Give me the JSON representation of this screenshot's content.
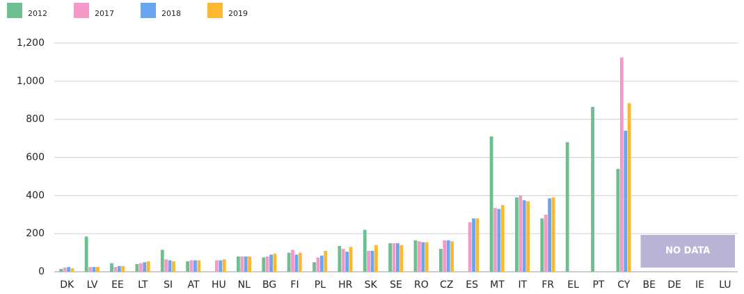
{
  "chart_data": {
    "type": "bar",
    "categories": [
      "DK",
      "LV",
      "EE",
      "LT",
      "SI",
      "AT",
      "HU",
      "NL",
      "BG",
      "FI",
      "PL",
      "HR",
      "SK",
      "SE",
      "RO",
      "CZ",
      "ES",
      "MT",
      "IT",
      "FR",
      "EL",
      "PT",
      "CY",
      "BE",
      "DE",
      "IE",
      "LU"
    ],
    "series": [
      {
        "name": "2012",
        "color": "#6dbf8f",
        "values": [
          15,
          185,
          45,
          40,
          115,
          55,
          null,
          80,
          75,
          100,
          50,
          135,
          220,
          150,
          165,
          120,
          null,
          710,
          390,
          280,
          680,
          865,
          540,
          null,
          null,
          null,
          null
        ]
      },
      {
        "name": "2017",
        "color": "#f59ac8",
        "values": [
          22,
          25,
          25,
          45,
          65,
          60,
          60,
          80,
          80,
          115,
          75,
          120,
          110,
          150,
          160,
          165,
          260,
          335,
          400,
          300,
          null,
          null,
          1125,
          null,
          null,
          null,
          null
        ]
      },
      {
        "name": "2018",
        "color": "#6aa6ef",
        "values": [
          25,
          25,
          30,
          50,
          60,
          60,
          60,
          80,
          90,
          90,
          85,
          105,
          110,
          150,
          155,
          165,
          280,
          330,
          375,
          385,
          null,
          null,
          740,
          null,
          null,
          null,
          null
        ]
      },
      {
        "name": "2019",
        "color": "#fbb830",
        "values": [
          18,
          25,
          30,
          55,
          55,
          60,
          65,
          80,
          95,
          100,
          110,
          130,
          140,
          140,
          155,
          160,
          280,
          350,
          370,
          390,
          null,
          null,
          885,
          null,
          null,
          null,
          null
        ]
      }
    ],
    "ylim": [
      0,
      1200
    ],
    "yticks": [
      0,
      200,
      400,
      600,
      800,
      {
        "value": 1000,
        "label": "1,000"
      },
      {
        "value": 1200,
        "label": "1,200"
      }
    ],
    "grid": true,
    "annotation": "NO DATA"
  }
}
